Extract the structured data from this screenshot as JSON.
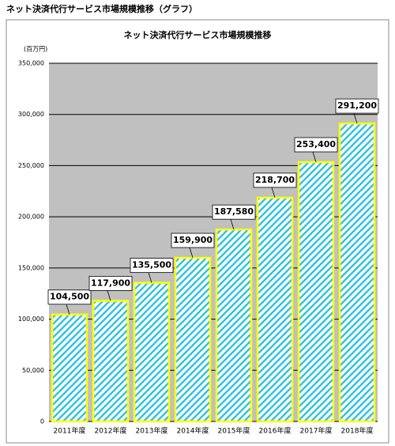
{
  "header": {
    "title": "ネット決済代行サービス市場規模推移（グラフ）"
  },
  "chart_data": {
    "type": "bar",
    "title": "ネット決済代行サービス市場規模推移",
    "y_unit": "(百万円)",
    "categories": [
      "2011年度",
      "2012年度",
      "2013年度",
      "2014年度",
      "2015年度",
      "2016年度",
      "2017年度",
      "2018年度"
    ],
    "values": [
      104500,
      117900,
      135500,
      159900,
      187580,
      218700,
      253400,
      291200
    ],
    "value_labels": [
      "104,500",
      "117,900",
      "135,500",
      "159,900",
      "187,580",
      "218,700",
      "253,400",
      "291,200"
    ],
    "color": "#33c3e0",
    "ylim": [
      0,
      350000
    ],
    "yticks": [
      0,
      {
        "value": 50000,
        "label": "50,000"
      },
      {
        "value": 100000,
        "label": "100,000"
      },
      {
        "value": 150000,
        "label": "150,000"
      },
      {
        "value": 200000,
        "label": "200,000"
      },
      {
        "value": 250000,
        "label": "250,000"
      },
      {
        "value": 300000,
        "label": "300,000"
      },
      {
        "value": 350000,
        "label": "350,000"
      }
    ],
    "grid": true
  }
}
